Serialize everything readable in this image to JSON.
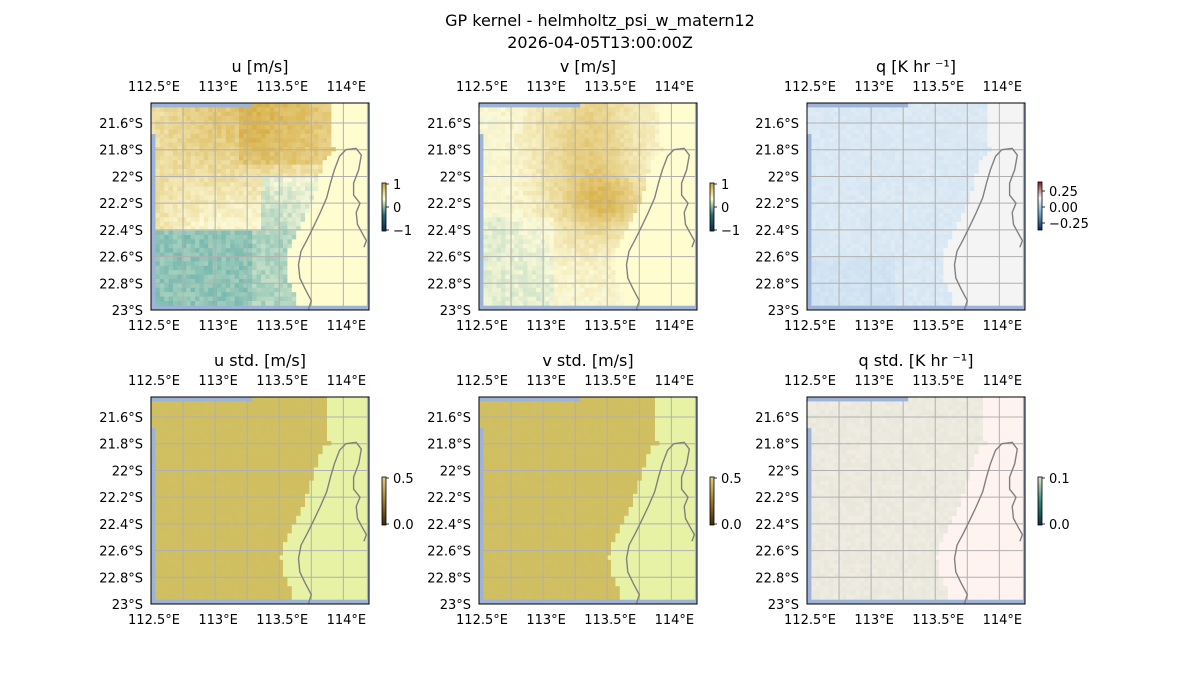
{
  "figure": {
    "title": "GP kernel - helmholtz_psi_w_matern12",
    "timestamp": "2026-04-05T13:00:00Z"
  },
  "colors": {
    "land": "#fffdd0",
    "ocean_edge": "#9db3d8",
    "grid": "#b0b0b0",
    "coast": "#808080"
  },
  "chart_data": [
    {
      "type": "heatmap",
      "title": "u [m/s]",
      "xticks": [
        "112.5°E",
        "113°E",
        "113.5°E",
        "114°E"
      ],
      "yticks": [
        "21.6°S",
        "21.8°S",
        "22°S",
        "22.2°S",
        "22.4°S",
        "22.6°S",
        "22.8°S",
        "23°S"
      ],
      "xlim": [
        112.5,
        114.2
      ],
      "ylim": [
        -23.0,
        -21.45
      ],
      "colorbar": {
        "ticks": [
          "1",
          "0",
          "−1"
        ],
        "range": [
          -1,
          1
        ],
        "colormap": "diverging teal-yellow"
      }
    },
    {
      "type": "heatmap",
      "title": "v [m/s]",
      "xticks": [
        "112.5°E",
        "113°E",
        "113.5°E",
        "114°E"
      ],
      "yticks": [
        "21.6°S",
        "21.8°S",
        "22°S",
        "22.2°S",
        "22.4°S",
        "22.6°S",
        "22.8°S",
        "23°S"
      ],
      "xlim": [
        112.5,
        114.2
      ],
      "ylim": [
        -23.0,
        -21.45
      ],
      "colorbar": {
        "ticks": [
          "1",
          "0",
          "−1"
        ],
        "range": [
          -1,
          1
        ],
        "colormap": "diverging teal-yellow"
      }
    },
    {
      "type": "heatmap",
      "title": "q [K hr ⁻¹]",
      "xticks": [
        "112.5°E",
        "113°E",
        "113.5°E",
        "114°E"
      ],
      "yticks": [
        "21.6°S",
        "21.8°S",
        "22°S",
        "22.2°S",
        "22.4°S",
        "22.6°S",
        "22.8°S",
        "23°S"
      ],
      "xlim": [
        112.5,
        114.2
      ],
      "ylim": [
        -23.0,
        -21.45
      ],
      "colorbar": {
        "ticks": [
          "0.25",
          "0.00",
          "−0.25"
        ],
        "range": [
          -0.4,
          0.4
        ],
        "colormap": "diverging blue-red"
      }
    },
    {
      "type": "heatmap",
      "title": "u std. [m/s]",
      "xticks": [
        "112.5°E",
        "113°E",
        "113.5°E",
        "114°E"
      ],
      "yticks": [
        "21.6°S",
        "21.8°S",
        "22°S",
        "22.2°S",
        "22.4°S",
        "22.6°S",
        "22.8°S",
        "23°S"
      ],
      "xlim": [
        112.5,
        114.2
      ],
      "ylim": [
        -23.0,
        -21.45
      ],
      "colorbar": {
        "ticks": [
          "0.5",
          "0.0"
        ],
        "range": [
          0,
          0.5
        ],
        "colormap": "sequential"
      }
    },
    {
      "type": "heatmap",
      "title": "v std. [m/s]",
      "xticks": [
        "112.5°E",
        "113°E",
        "113.5°E",
        "114°E"
      ],
      "yticks": [
        "21.6°S",
        "21.8°S",
        "22°S",
        "22.2°S",
        "22.4°S",
        "22.6°S",
        "22.8°S",
        "23°S"
      ],
      "xlim": [
        112.5,
        114.2
      ],
      "ylim": [
        -23.0,
        -21.45
      ],
      "colorbar": {
        "ticks": [
          "0.5",
          "0.0"
        ],
        "range": [
          0,
          0.5
        ],
        "colormap": "sequential"
      }
    },
    {
      "type": "heatmap",
      "title": "q std. [K hr ⁻¹]",
      "xticks": [
        "112.5°E",
        "113°E",
        "113.5°E",
        "114°E"
      ],
      "yticks": [
        "21.6°S",
        "21.8°S",
        "22°S",
        "22.2°S",
        "22.4°S",
        "22.6°S",
        "22.8°S",
        "23°S"
      ],
      "xlim": [
        112.5,
        114.2
      ],
      "ylim": [
        -23.0,
        -21.45
      ],
      "colorbar": {
        "ticks": [
          "0.1",
          "0.0"
        ],
        "range": [
          0,
          0.1
        ],
        "colormap": "sequential"
      }
    }
  ]
}
